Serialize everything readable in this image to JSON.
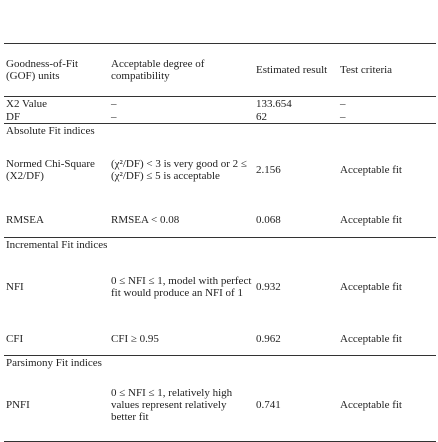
{
  "table": {
    "header": [
      "Goodness-of-Fit (GOF) units",
      "Acceptable degree of compatibility",
      "Estimated result",
      "Test criteria"
    ],
    "groups": [
      {
        "rows": [
          [
            "X2 Value",
            "–",
            "133.654",
            "–"
          ],
          [
            "DF",
            "–",
            "62",
            "–"
          ]
        ]
      },
      {
        "title": "Absolute Fit indices",
        "rows": [
          [
            "Normed Chi-Square (X2/DF)",
            "(χ²/DF) < 3 is very good or 2 ≤ (χ²/DF) ≤ 5 is acceptable",
            "2.156",
            "Acceptable fit"
          ],
          [
            "RMSEA",
            "RMSEA < 0.08",
            "0.068",
            "Acceptable fit"
          ]
        ]
      },
      {
        "title": "Incremental Fit indices",
        "rows": [
          [
            "NFI",
            "0 ≤ NFI ≤ 1, model with perfect fit would produce an NFI of 1",
            "0.932",
            "Acceptable fit"
          ],
          [
            "CFI",
            "CFI ≥ 0.95",
            "0.962",
            "Acceptable fit"
          ]
        ]
      },
      {
        "title": "Parsimony Fit indices",
        "rows": [
          [
            "PNFI",
            "0 ≤ NFI ≤ 1, relatively high values represent relatively better fit",
            "0.741",
            "Acceptable fit"
          ]
        ]
      }
    ]
  }
}
